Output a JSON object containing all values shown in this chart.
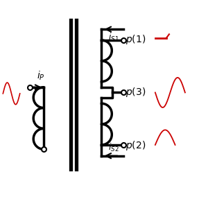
{
  "bg_color": "#ffffff",
  "line_color": "#000000",
  "red_color": "#cc0000",
  "lw": 2.5,
  "thin_lw": 1.5
}
